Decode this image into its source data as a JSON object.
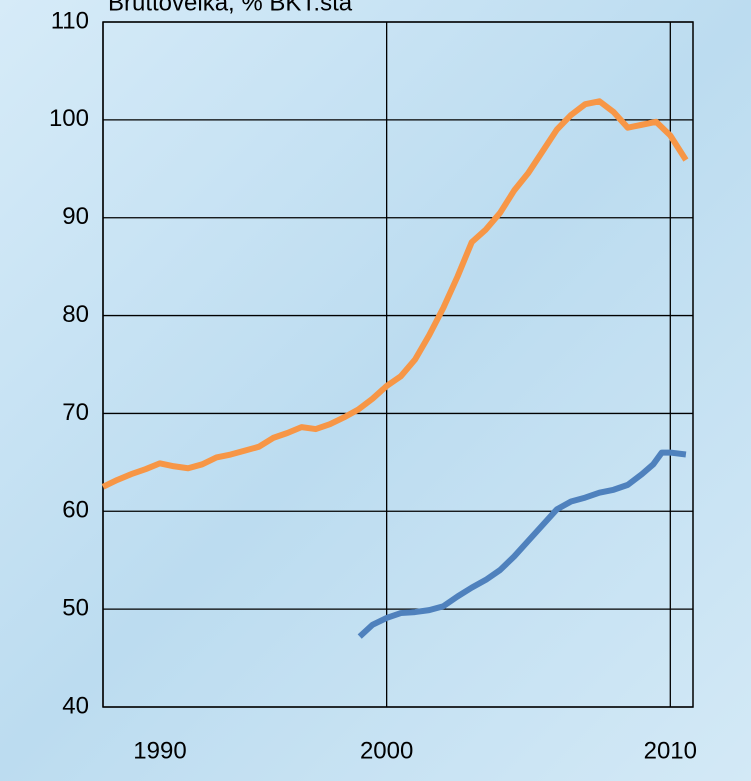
{
  "chart_data": {
    "type": "line",
    "title": "Bruttovelka, % BKT:stä",
    "xlim": [
      1990,
      2010.8
    ],
    "xticks": [
      1990,
      2000,
      2010
    ],
    "ylim": [
      40,
      110
    ],
    "yticks": [
      40,
      50,
      60,
      70,
      80,
      90,
      100,
      110
    ],
    "grid": true,
    "series": [
      {
        "name": null,
        "color": "#f79646",
        "x": [
          1990,
          1990.5,
          1991,
          1991.5,
          1992,
          1992.5,
          1993,
          1993.5,
          1994,
          1994.5,
          1995,
          1995.5,
          1996,
          1996.5,
          1997,
          1997.5,
          1998,
          1998.5,
          1999,
          1999.5,
          2000,
          2000.5,
          2001,
          2001.5,
          2002,
          2002.5,
          2003,
          2003.5,
          2004,
          2004.5,
          2005,
          2005.5,
          2006,
          2006.5,
          2007,
          2007.5,
          2008,
          2008.5,
          2009,
          2009.5,
          2010,
          2010.55
        ],
        "values": [
          62.5,
          63.2,
          63.8,
          64.3,
          64.9,
          64.6,
          64.4,
          64.8,
          65.5,
          65.8,
          66.2,
          66.6,
          67.5,
          68.0,
          68.6,
          68.4,
          68.9,
          69.6,
          70.4,
          71.5,
          72.8,
          73.8,
          75.5,
          78.0,
          80.8,
          84.0,
          87.5,
          88.8,
          90.5,
          92.8,
          94.6,
          96.8,
          99.0,
          100.5,
          101.6,
          101.9,
          100.8,
          99.2,
          99.5,
          99.8,
          98.4,
          95.9
        ]
      },
      {
        "name": null,
        "color": "#4f81bd",
        "x": [
          1999.05,
          1999.5,
          2000,
          2000.5,
          2001,
          2001.5,
          2002,
          2002.5,
          2003,
          2003.5,
          2004,
          2004.5,
          2005,
          2005.5,
          2006,
          2006.5,
          2007,
          2007.5,
          2008,
          2008.5,
          2009,
          2009.4,
          2009.7,
          2010,
          2010.55
        ],
        "values": [
          47.2,
          48.4,
          49.1,
          49.6,
          49.7,
          49.9,
          50.3,
          51.3,
          52.2,
          53.0,
          54.0,
          55.4,
          57.0,
          58.6,
          60.2,
          61.0,
          61.4,
          61.9,
          62.2,
          62.7,
          63.8,
          64.8,
          66.0,
          66.0,
          65.8
        ]
      }
    ]
  }
}
